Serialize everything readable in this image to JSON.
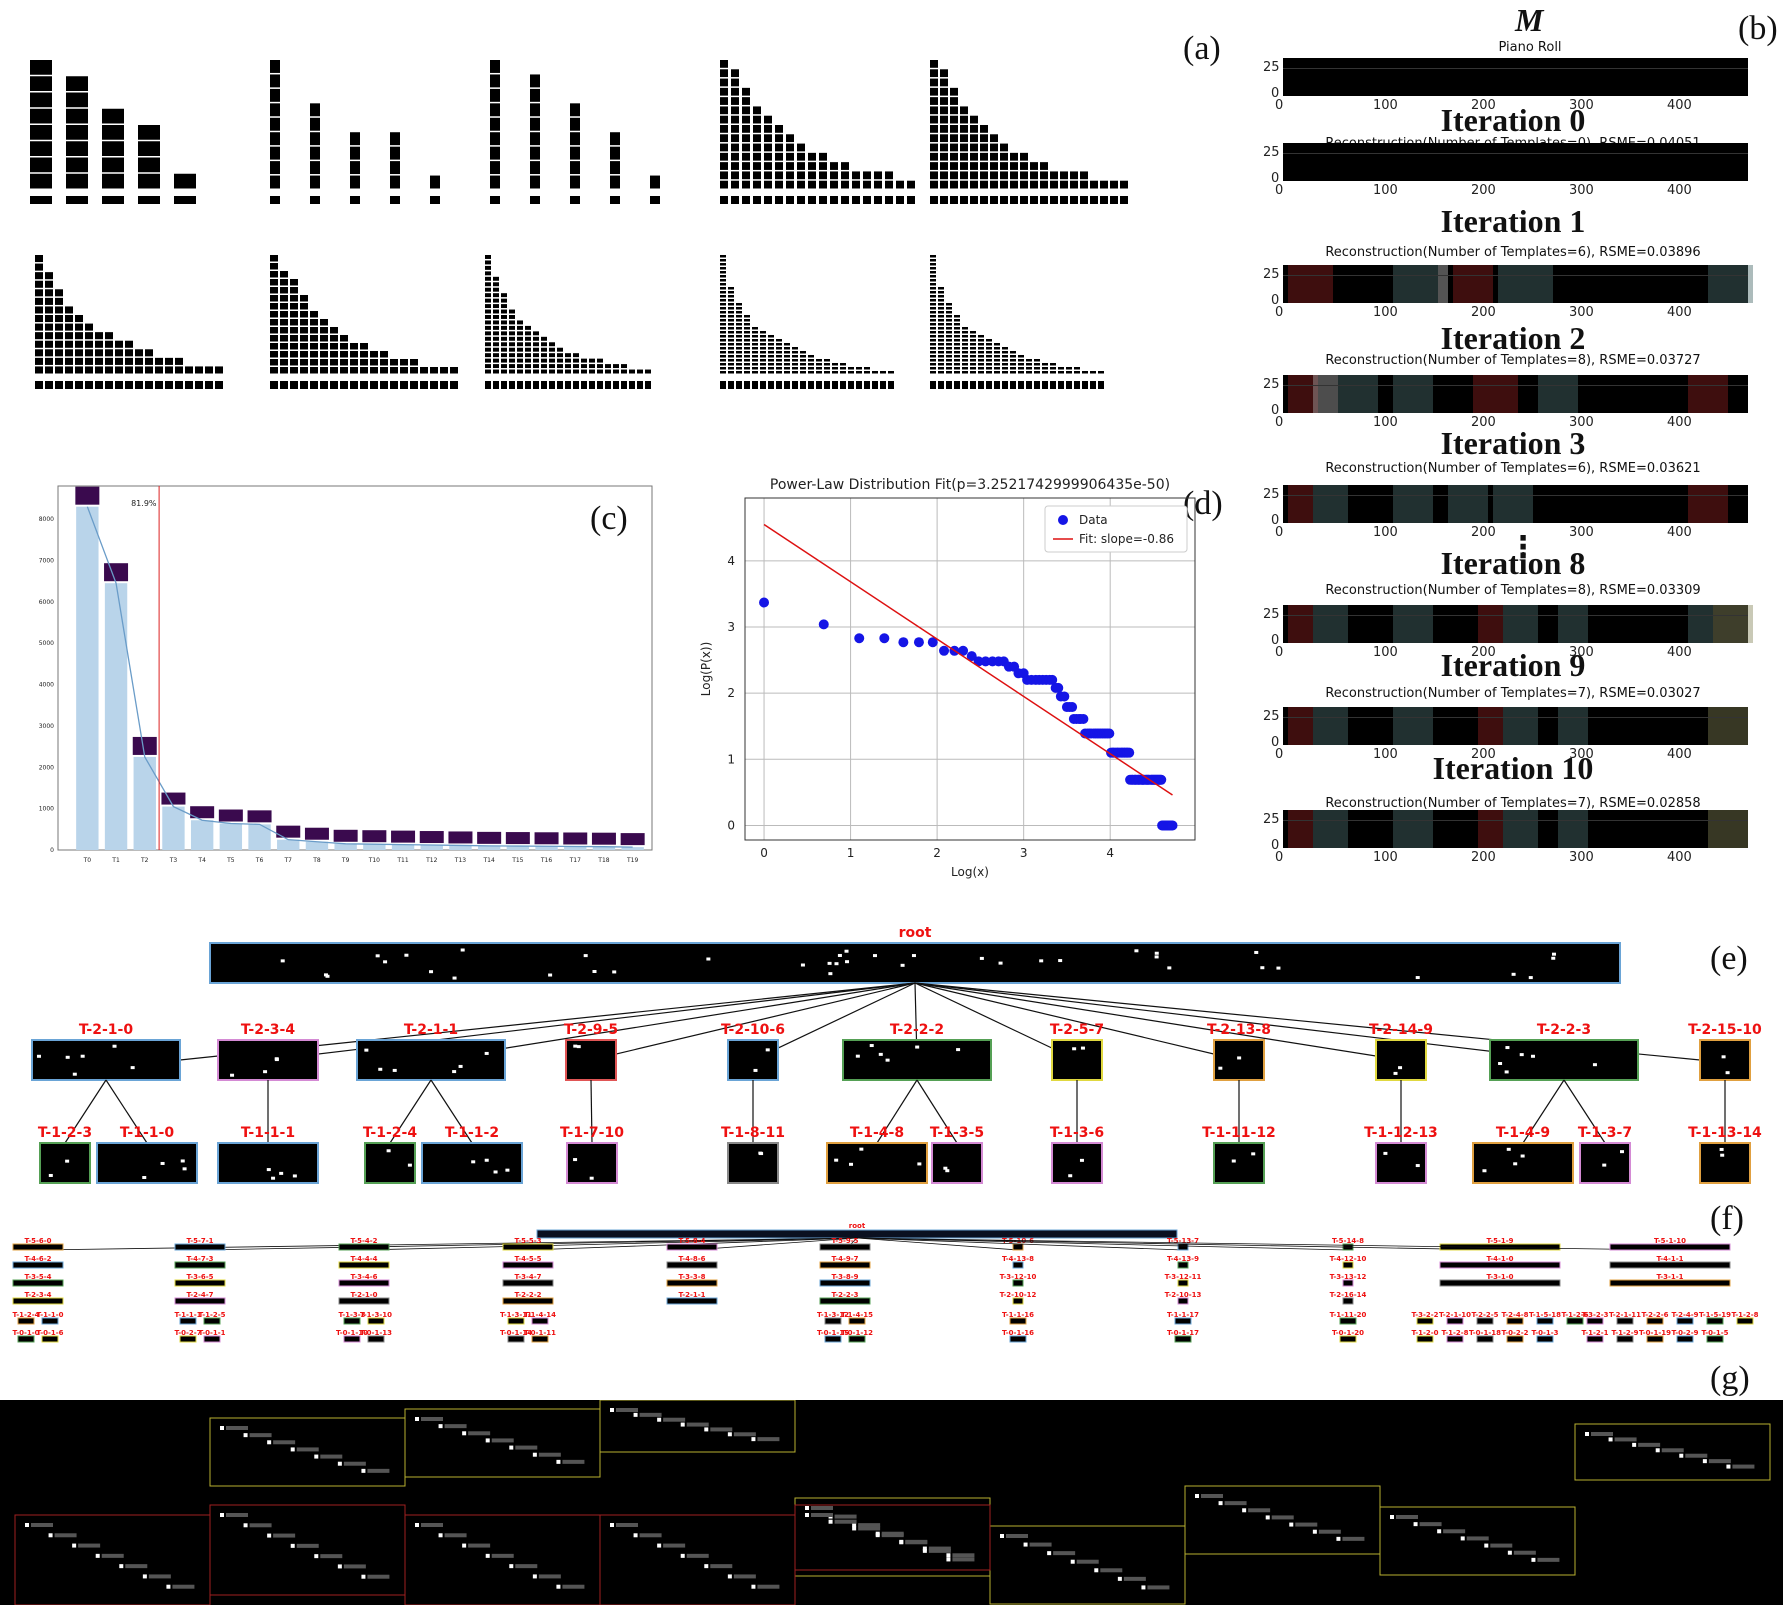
{
  "panels": {
    "a": "(a)",
    "b": "(b)",
    "c": "(c)",
    "d": "(d)",
    "e": "(e)",
    "f": "(f)",
    "g": "(g)"
  },
  "panel_b": {
    "symbol": "M",
    "piano_roll_title": "Piano Roll",
    "y_ticks": [
      "25",
      "0"
    ],
    "x_ticks": [
      "0",
      "100",
      "200",
      "300",
      "400"
    ],
    "ellipsis": "⋮",
    "iterations": [
      {
        "title": "Iteration 0",
        "subtitle": "Reconstruction(Number of Templates=0), RSME=0.04051"
      },
      {
        "title": "Iteration 1",
        "subtitle": "Reconstruction(Number of Templates=6), RSME=0.03896"
      },
      {
        "title": "Iteration 2",
        "subtitle": "Reconstruction(Number of Templates=8), RSME=0.03727"
      },
      {
        "title": "Iteration 3",
        "subtitle": "Reconstruction(Number of Templates=6), RSME=0.03621"
      },
      {
        "title": "Iteration 8",
        "subtitle": "Reconstruction(Number of Templates=8), RSME=0.03309"
      },
      {
        "title": "Iteration 9",
        "subtitle": "Reconstruction(Number of Templates=7), RSME=0.03027"
      },
      {
        "title": "Iteration 10",
        "subtitle": "Reconstruction(Number of Templates=7), RSME=0.02858"
      }
    ]
  },
  "chart_data": [
    {
      "type": "bar",
      "panel": "(c)",
      "categories": [
        "T0",
        "T1",
        "T2",
        "T3",
        "T4",
        "T5",
        "T6",
        "T7",
        "T8",
        "T9",
        "T10",
        "T11",
        "T12",
        "T13",
        "T14",
        "T15",
        "T16",
        "T17",
        "T18",
        "T19"
      ],
      "values": [
        8300,
        6450,
        2250,
        1050,
        720,
        640,
        620,
        250,
        200,
        150,
        140,
        130,
        120,
        110,
        100,
        95,
        90,
        85,
        80,
        70
      ],
      "cumulative_curve": [
        8300,
        6450,
        2250,
        1050,
        720,
        640,
        620,
        250,
        200,
        150,
        140,
        130,
        120,
        110,
        100,
        95,
        90,
        85,
        80,
        70
      ],
      "annotation": "81.9%",
      "cutoff_after": "T2",
      "y_ticks": [
        "0",
        "1000",
        "2000",
        "3000",
        "4000",
        "5000",
        "6000",
        "7000",
        "8000"
      ],
      "ylim": [
        0,
        8800
      ],
      "bar_color": "#b9d4ea",
      "line_color": "#6a9cc8",
      "cutoff_color": "#d22"
    },
    {
      "type": "scatter",
      "panel": "(d)",
      "title": "Power-Law Distribution Fit(p=3.2521742999906435e-50)",
      "xlabel": "Log(x)",
      "ylabel": "Log(P(x))",
      "x_ticks": [
        "0",
        "1",
        "2",
        "3",
        "4"
      ],
      "y_ticks": [
        "0",
        "1",
        "2",
        "3",
        "4"
      ],
      "xlim": [
        -0.22,
        4.98
      ],
      "ylim": [
        -0.22,
        4.95
      ],
      "grid": true,
      "legend": {
        "position": "top-right",
        "entries": [
          "Data",
          "Fit: slope=-0.86"
        ]
      },
      "series": [
        {
          "name": "Data",
          "color": "#1515e6",
          "x": [
            0,
            0.69,
            1.1,
            1.39,
            1.61,
            1.79,
            1.95,
            2.08,
            2.2,
            2.3,
            2.4,
            2.48,
            2.56,
            2.64,
            2.71,
            2.77,
            2.83,
            2.89,
            2.94,
            3.0,
            3.04,
            3.09,
            3.14,
            3.18,
            3.22,
            3.26,
            3.3,
            3.33,
            3.37,
            3.4,
            3.43,
            3.47,
            3.5,
            3.53,
            3.56,
            3.58,
            3.61,
            3.64,
            3.66,
            3.69,
            3.71,
            3.74,
            3.76,
            3.78,
            3.81,
            3.83,
            3.85,
            3.87,
            3.89,
            3.91,
            3.93,
            3.95,
            3.97,
            3.99,
            4.01,
            4.03,
            4.04,
            4.06,
            4.08,
            4.09,
            4.11,
            4.13,
            4.14,
            4.16,
            4.17,
            4.19,
            4.2,
            4.22,
            4.23,
            4.25,
            4.26,
            4.28,
            4.29,
            4.3,
            4.32,
            4.33,
            4.34,
            4.36,
            4.37,
            4.38,
            4.39,
            4.41,
            4.42,
            4.43,
            4.44,
            4.45,
            4.47,
            4.48,
            4.49,
            4.5,
            4.51,
            4.52,
            4.53,
            4.54,
            4.55,
            4.56,
            4.57,
            4.58,
            4.59,
            4.6,
            4.61,
            4.62,
            4.63,
            4.64,
            4.65,
            4.66,
            4.67,
            4.68,
            4.69,
            4.7,
            4.71,
            4.72
          ],
          "y": [
            3.37,
            3.04,
            2.83,
            2.83,
            2.77,
            2.77,
            2.77,
            2.64,
            2.64,
            2.64,
            2.56,
            2.48,
            2.48,
            2.48,
            2.48,
            2.48,
            2.4,
            2.4,
            2.3,
            2.3,
            2.2,
            2.2,
            2.2,
            2.2,
            2.2,
            2.2,
            2.2,
            2.2,
            2.08,
            2.08,
            1.95,
            1.95,
            1.79,
            1.79,
            1.79,
            1.61,
            1.61,
            1.61,
            1.61,
            1.61,
            1.39,
            1.39,
            1.39,
            1.39,
            1.39,
            1.39,
            1.39,
            1.39,
            1.39,
            1.39,
            1.39,
            1.39,
            1.39,
            1.39,
            1.1,
            1.1,
            1.1,
            1.1,
            1.1,
            1.1,
            1.1,
            1.1,
            1.1,
            1.1,
            1.1,
            1.1,
            1.1,
            1.1,
            0.69,
            0.69,
            0.69,
            0.69,
            0.69,
            0.69,
            0.69,
            0.69,
            0.69,
            0.69,
            0.69,
            0.69,
            0.69,
            0.69,
            0.69,
            0.69,
            0.69,
            0.69,
            0.69,
            0.69,
            0.69,
            0.69,
            0.69,
            0.69,
            0.69,
            0.69,
            0.69,
            0.69,
            0.69,
            0.69,
            0.69,
            0,
            0,
            0,
            0,
            0,
            0,
            0,
            0,
            0,
            0,
            0,
            0,
            0
          ]
        },
        {
          "name": "Fit: slope=-0.86",
          "color": "#d11",
          "type": "line",
          "x": [
            0,
            4.72
          ],
          "y": [
            4.55,
            0.46
          ]
        }
      ]
    }
  ],
  "tree_e": {
    "root": "root",
    "level1": [
      "T-2-1-0",
      "T-2-3-4",
      "T-2-1-1",
      "T-2-9-5",
      "T-2-10-6",
      "T-2-2-2",
      "T-2-5-7",
      "T-2-13-8",
      "T-2-14-9",
      "T-2-2-3",
      "T-2-15-10"
    ],
    "level2": [
      "T-1-2-3",
      "T-1-1-0",
      "T-1-1-1",
      "T-1-2-4",
      "T-1-1-2",
      "T-1-7-10",
      "T-1-8-11",
      "T-1-4-8",
      "T-1-3-5",
      "T-1-3-6",
      "T-1-11-12",
      "T-1-12-13",
      "T-1-4-9",
      "T-1-3-7",
      "T-1-13-14"
    ]
  },
  "tree_f": {
    "root": "root",
    "columns": [
      [
        "T-5-6-0",
        "T-4-6-2",
        "T-3-5-4",
        "T-2-3-4",
        "T-1-2-4",
        "T-1-1-0",
        "T-0-1-0",
        "T-0-1-6"
      ],
      [
        "T-5-7-1",
        "T-4-7-3",
        "T-3-6-5",
        "T-2-4-7",
        "T-1-1-1",
        "T-1-2-5",
        "T-0-2-7",
        "T-0-1-1"
      ],
      [
        "T-5-4-2",
        "T-4-4-4",
        "T-3-4-6",
        "T-2-1-0",
        "T-1-3-3",
        "T-1-3-10",
        "T-0-1-10",
        "T-0-1-13"
      ],
      [
        "T-5-5-3",
        "T-4-5-5",
        "T-3-4-7",
        "T-2-2-2",
        "T-1-3-11",
        "T-1-4-14",
        "T-0-1-14",
        "T-0-1-11"
      ],
      [
        "T-5-8-4",
        "T-4-8-6",
        "T-3-3-8",
        "T-2-1-1"
      ],
      [
        "T-5-9-5",
        "T-4-9-7",
        "T-3-8-9",
        "T-2-2-3",
        "T-1-3-12",
        "T-1-4-15",
        "T-0-1-15",
        "T-0-1-12"
      ],
      [
        "T-5-10-6",
        "T-4-13-8",
        "T-3-12-10",
        "T-2-10-12",
        "T-1-1-16",
        "T-0-1-16"
      ],
      [
        "T-5-13-7",
        "T-4-13-9",
        "T-3-12-11",
        "T-2-10-13",
        "T-1-1-17",
        "T-0-1-17"
      ],
      [
        "T-5-14-8",
        "T-4-12-10",
        "T-3-13-12",
        "T-2-16-14",
        "T-1-11-20",
        "T-0-1-20"
      ],
      [
        "T-5-1-9",
        "T-4-1-0",
        "T-3-1-0",
        "T-3-2-2",
        "T-2-1-10",
        "T-2-2-5",
        "T-2-4-8",
        "T-1-5-18",
        "T-1-2-6",
        "T-1-2-0",
        "T-1-2-8",
        "T-0-1-18",
        "T-0-2-2",
        "T-0-1-3"
      ],
      [
        "T-5-1-10",
        "T-4-1-1",
        "T-3-1-1",
        "T-3-2-3",
        "T-2-1-11",
        "T-2-2-6",
        "T-2-4-9",
        "T-1-5-19",
        "T-1-2-8",
        "T-1-2-1",
        "T-1-2-9",
        "T-0-1-19",
        "T-0-2-9",
        "T-0-1-5"
      ]
    ]
  }
}
